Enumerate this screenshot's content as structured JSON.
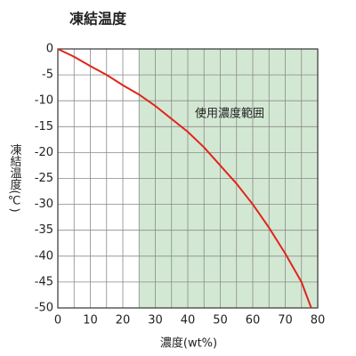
{
  "chart_data": {
    "type": "line",
    "title": "凍結温度",
    "x_label": "濃度(wt%)",
    "y_label": "凍結温度(℃)",
    "x": [
      0,
      5,
      10,
      15,
      20,
      25,
      30,
      35,
      40,
      45,
      50,
      55,
      60,
      65,
      70,
      75,
      78
    ],
    "values": [
      0,
      -1.5,
      -3.3,
      -5,
      -7,
      -8.8,
      -11,
      -13.5,
      -16,
      -19,
      -22.5,
      -26,
      -30,
      -34.5,
      -39.5,
      -45,
      -50
    ],
    "color": "#e0251b",
    "xlim": [
      0,
      80
    ],
    "ylim": [
      -50,
      0
    ],
    "xticks": [
      0,
      10,
      20,
      30,
      40,
      50,
      60,
      70,
      80
    ],
    "yticks": [
      0,
      -5,
      -10,
      -15,
      -20,
      -25,
      -30,
      -35,
      -40,
      -45,
      -50
    ],
    "xgrid": [
      0,
      5,
      10,
      15,
      20,
      25,
      30,
      35,
      40,
      45,
      50,
      55,
      60,
      65,
      70,
      75,
      80
    ],
    "grid": true,
    "highlight_range": {
      "x": [
        25,
        80
      ],
      "color": "#d3e8d3",
      "label": "使用濃度範囲"
    }
  }
}
